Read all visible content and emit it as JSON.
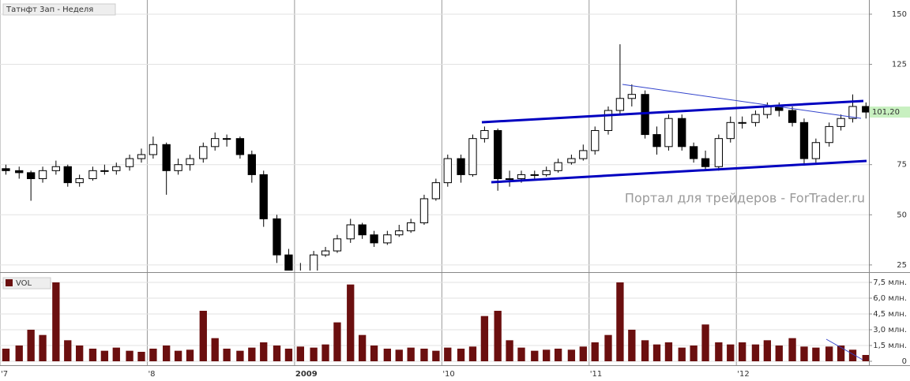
{
  "header": {
    "title": "Татнфт 3ап - Неделя",
    "watermark": "Портал для трейдеров - ForTrader.ru"
  },
  "chart_data": [
    {
      "type": "candlestick",
      "last_price": {
        "value": 101.2,
        "label": "101,20"
      },
      "x": [
        2007.04,
        2007.13,
        2007.21,
        2007.29,
        2007.38,
        2007.46,
        2007.54,
        2007.63,
        2007.71,
        2007.79,
        2007.88,
        2007.96,
        2008.04,
        2008.13,
        2008.21,
        2008.29,
        2008.38,
        2008.46,
        2008.54,
        2008.63,
        2008.71,
        2008.79,
        2008.88,
        2008.96,
        2009.04,
        2009.13,
        2009.21,
        2009.29,
        2009.38,
        2009.46,
        2009.54,
        2009.63,
        2009.71,
        2009.79,
        2009.88,
        2009.96,
        2010.04,
        2010.13,
        2010.21,
        2010.29,
        2010.38,
        2010.46,
        2010.54,
        2010.63,
        2010.71,
        2010.79,
        2010.88,
        2010.96,
        2011.04,
        2011.13,
        2011.21,
        2011.29,
        2011.38,
        2011.46,
        2011.54,
        2011.63,
        2011.71,
        2011.79,
        2011.88,
        2011.96,
        2012.04,
        2012.13,
        2012.21,
        2012.29,
        2012.38,
        2012.46,
        2012.54,
        2012.63,
        2012.71,
        2012.79,
        2012.88
      ],
      "open": [
        73,
        72,
        71,
        68,
        72,
        74,
        66,
        68,
        72,
        72,
        74,
        78,
        80,
        85,
        72,
        75,
        78,
        84,
        88,
        88,
        80,
        70,
        48,
        30,
        22,
        22,
        30,
        32,
        38,
        45,
        40,
        36,
        40,
        42,
        46,
        58,
        66,
        78,
        70,
        88,
        92,
        68,
        68,
        70,
        70,
        72,
        76,
        78,
        82,
        92,
        102,
        108,
        110,
        90,
        84,
        98,
        84,
        78,
        74,
        88,
        96,
        96,
        100,
        104,
        102,
        96,
        78,
        86,
        94,
        98,
        104
      ],
      "high": [
        75,
        74,
        72,
        74,
        77,
        75,
        70,
        74,
        75,
        76,
        80,
        83,
        89,
        86,
        78,
        80,
        86,
        91,
        90,
        89,
        82,
        72,
        50,
        33,
        26,
        32,
        34,
        40,
        48,
        46,
        42,
        42,
        45,
        48,
        60,
        68,
        80,
        80,
        90,
        94,
        93,
        72,
        72,
        72,
        74,
        78,
        80,
        85,
        94,
        104,
        135,
        115,
        112,
        94,
        100,
        100,
        86,
        82,
        90,
        99,
        99,
        102,
        106,
        106,
        104,
        98,
        88,
        96,
        100,
        110,
        106
      ],
      "low": [
        70,
        68,
        57,
        66,
        70,
        64,
        64,
        67,
        70,
        70,
        72,
        76,
        78,
        60,
        70,
        72,
        76,
        82,
        84,
        78,
        66,
        44,
        26,
        22,
        22,
        22,
        29,
        31,
        36,
        38,
        34,
        35,
        39,
        41,
        45,
        57,
        64,
        66,
        69,
        86,
        62,
        64,
        66,
        68,
        69,
        71,
        75,
        77,
        80,
        90,
        100,
        104,
        88,
        80,
        82,
        82,
        76,
        72,
        72,
        86,
        93,
        94,
        98,
        99,
        94,
        75,
        76,
        84,
        92,
        96,
        98
      ],
      "close": [
        72,
        71,
        68,
        72,
        74,
        66,
        68,
        72,
        72,
        74,
        78,
        80,
        85,
        72,
        75,
        78,
        84,
        88,
        88,
        80,
        70,
        48,
        30,
        22,
        22,
        30,
        32,
        38,
        45,
        40,
        36,
        40,
        42,
        46,
        58,
        66,
        78,
        70,
        88,
        92,
        68,
        68,
        70,
        70,
        72,
        76,
        78,
        82,
        92,
        102,
        108,
        110,
        90,
        84,
        98,
        84,
        78,
        74,
        88,
        96,
        96,
        100,
        104,
        102,
        96,
        78,
        86,
        94,
        98,
        104,
        101.2
      ],
      "xlim": [
        2007,
        2012.9
      ],
      "xticks": [
        {
          "value": 2007,
          "label": "'7"
        },
        {
          "value": 2008,
          "label": "'8"
        },
        2009,
        {
          "value": 2010,
          "label": "'10"
        },
        {
          "value": 2011,
          "label": "'11"
        },
        {
          "value": 2012,
          "label": "'12"
        }
      ],
      "ylim": [
        22.2,
        155.1
      ],
      "yticks": [
        25,
        50,
        75,
        125,
        150
      ],
      "grid": true,
      "up_color": "#ffffff",
      "down_color": "#000000"
    },
    {
      "type": "bar",
      "legend": "VOL",
      "color": "#6b0f0f",
      "values": [
        1.2,
        1.5,
        3.0,
        2.5,
        7.5,
        2.0,
        1.5,
        1.2,
        1.0,
        1.3,
        1.0,
        0.9,
        1.2,
        1.5,
        1.0,
        1.1,
        4.8,
        2.2,
        1.2,
        1.0,
        1.3,
        1.8,
        1.5,
        1.2,
        1.4,
        1.3,
        1.6,
        3.7,
        7.3,
        2.5,
        1.5,
        1.2,
        1.1,
        1.3,
        1.2,
        1.0,
        1.3,
        1.2,
        1.4,
        4.3,
        4.8,
        2.0,
        1.3,
        1.0,
        1.1,
        1.2,
        1.1,
        1.4,
        1.8,
        2.5,
        7.5,
        3.0,
        2.0,
        1.6,
        1.8,
        1.3,
        1.5,
        3.5,
        1.8,
        1.6,
        1.8,
        1.6,
        2.0,
        1.5,
        2.2,
        1.4,
        1.3,
        1.4,
        1.5,
        1.1,
        0.6
      ],
      "ylim": [
        -0.375,
        8.1
      ],
      "yticks": [
        0,
        {
          "value": 1.5,
          "label": "1,5 млн."
        },
        {
          "value": 3,
          "label": "3,0 млн."
        },
        {
          "value": 4.5,
          "label": "4,5 млн."
        },
        {
          "value": 6,
          "label": "6,0 млн."
        },
        {
          "value": 7.5,
          "label": "7,5 млн."
        }
      ],
      "grid": true
    }
  ]
}
